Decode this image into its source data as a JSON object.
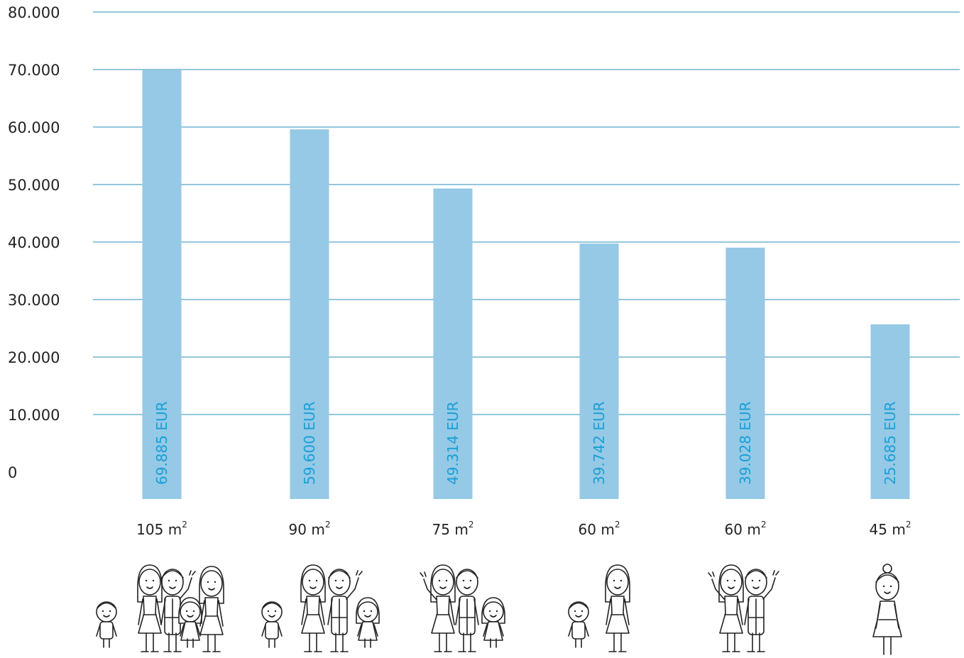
{
  "chart_data": {
    "type": "bar",
    "title": "",
    "xlabel": "",
    "ylabel": "",
    "ylim": [
      0,
      80000
    ],
    "y_ticks": [
      "0",
      "10.000",
      "20.000",
      "30.000",
      "40.000",
      "50.000",
      "60.000",
      "70.000",
      "80.000"
    ],
    "grid": "horizontal",
    "categories": [
      {
        "area": "105 m",
        "unit_sup": "2",
        "household": "family-with-three-children-icon"
      },
      {
        "area": "90 m",
        "unit_sup": "2",
        "household": "family-with-two-children-icon"
      },
      {
        "area": "75 m",
        "unit_sup": "2",
        "household": "couple-with-one-child-icon"
      },
      {
        "area": "60 m",
        "unit_sup": "2",
        "household": "single-parent-with-child-icon"
      },
      {
        "area": "60 m",
        "unit_sup": "2",
        "household": "couple-icon"
      },
      {
        "area": "45 m",
        "unit_sup": "2",
        "household": "single-person-icon"
      }
    ],
    "values": [
      69885,
      59600,
      49314,
      39742,
      39028,
      25685
    ],
    "data_labels": [
      "69.885 EUR",
      "59.600 EUR",
      "49.314 EUR",
      "39.742 EUR",
      "39.028 EUR",
      "25.685 EUR"
    ],
    "colors": {
      "bar": "#95c9e6",
      "grid": "#2a8fb8",
      "label": "#1a9fd6",
      "text": "#222222"
    }
  }
}
